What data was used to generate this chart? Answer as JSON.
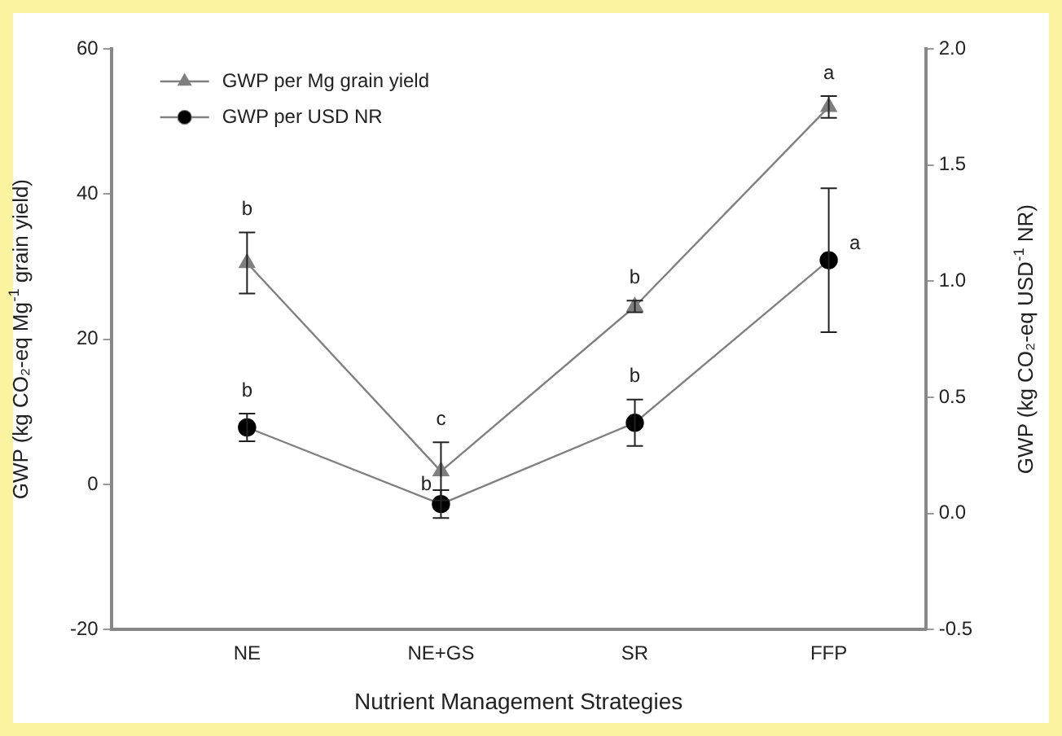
{
  "chart_data": {
    "type": "line",
    "xlabel": "Nutrient Management Strategies",
    "ylabel": "GWP (kg CO₂-eq Mg$^{-1}$ grain yield)",
    "y2label": "GWP (kg CO₂-eq USD$^{-1}$ NR)",
    "categories": [
      "NE",
      "NE+GS",
      "SR",
      "FFP"
    ],
    "series": [
      {
        "name": "GWP per Mg grain yield",
        "color": "#7f7f7f",
        "marker": "triangle",
        "values": [
          30.5,
          1.8,
          24.5,
          52
        ],
        "errors": [
          4.2,
          4,
          0.8,
          1.5
        ],
        "value_labels": [
          "b",
          "c",
          "b",
          "a"
        ]
      },
      {
        "name": "GWP per USD NR",
        "color": "#000000",
        "marker": "circle",
        "axis": "y2",
        "values": [
          0.37,
          0.04,
          0.39,
          1.09
        ],
        "errors": [
          0.06,
          0.06,
          0.1,
          0.31
        ],
        "value_labels": [
          "b",
          "b",
          "b",
          "a"
        ]
      }
    ],
    "ylim": [
      -20,
      60
    ],
    "yticks": [
      -20,
      0,
      20,
      40,
      60
    ],
    "y2lim": [
      -0.5,
      2.0
    ],
    "y2ticks": [
      {
        "value": -0.5,
        "label": "-0.5"
      },
      {
        "value": 0,
        "label": "0.0"
      },
      {
        "value": 0.5,
        "label": "0.5"
      },
      {
        "value": 1,
        "label": "1.0"
      },
      {
        "value": 1.5,
        "label": "1.5"
      },
      {
        "value": 2,
        "label": "2.0"
      }
    ],
    "grid": false,
    "legend": "top left",
    "line_style": "solid"
  }
}
